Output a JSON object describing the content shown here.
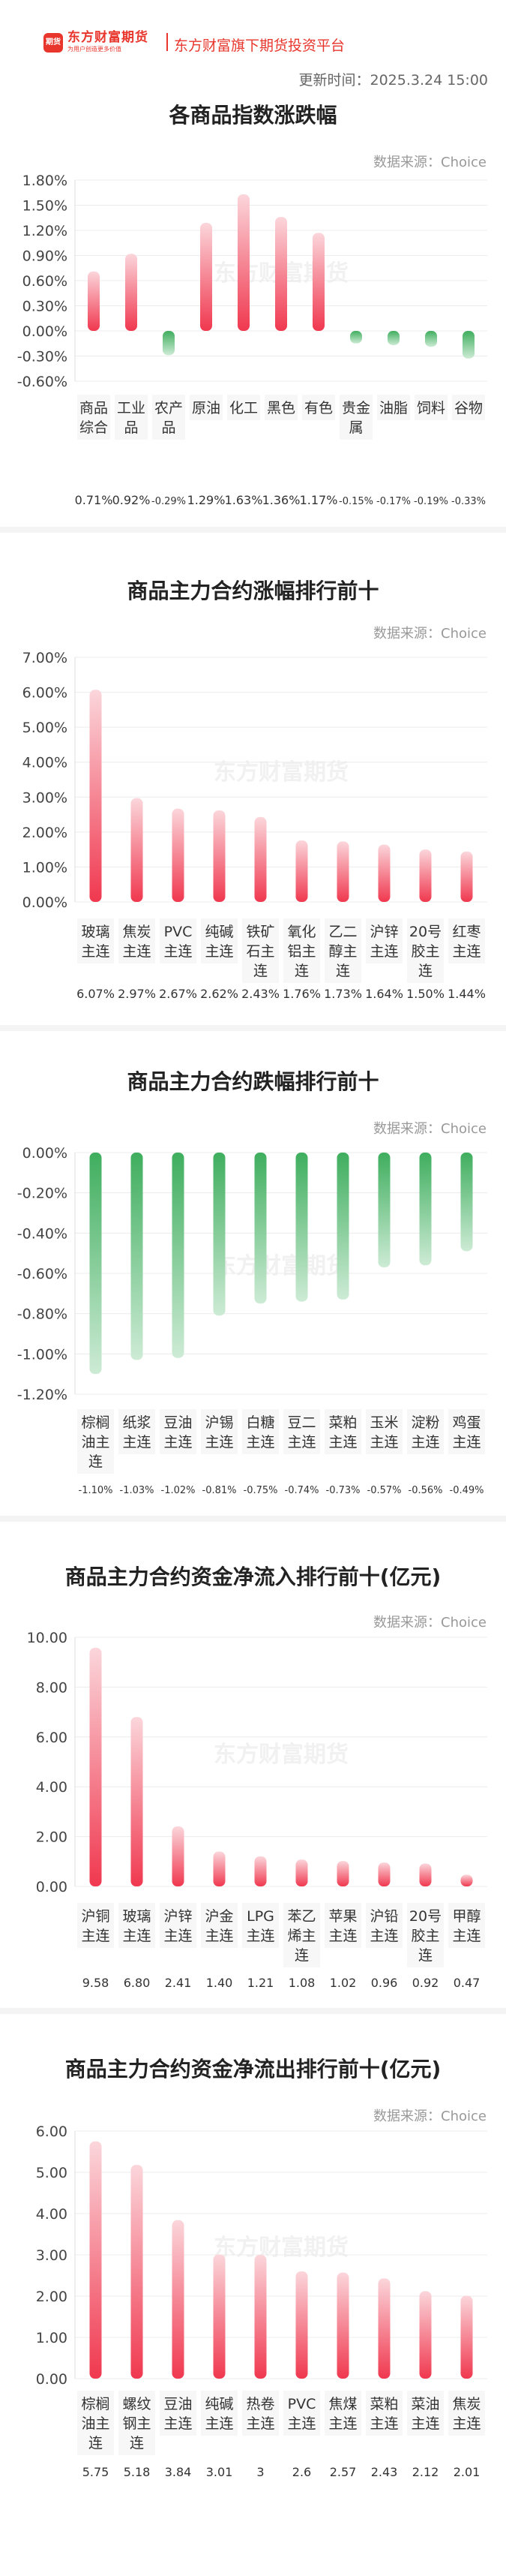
{
  "header": {
    "logo_label": "期货",
    "brand": "东方财富期货",
    "brand_sub": "为用户创造更多价值",
    "tagline": "东方财富旗下期货投资平台",
    "updated": "更新时间：2025.3.24 15:00"
  },
  "watermark": "东方财富期货",
  "colors": {
    "up": "#f0384f",
    "down": "#3fae5e",
    "up_light": "#fbd6db",
    "down_light": "#cdebd5"
  },
  "chart_data": [
    {
      "type": "bar",
      "title": "各商品指数涨跌幅",
      "source": "数据来源：Choice",
      "categories": [
        "商品综合",
        "工业品",
        "农产品",
        "原油",
        "化工",
        "黑色",
        "有色",
        "贵金属",
        "油脂",
        "饲料",
        "谷物"
      ],
      "category_lines": [
        [
          "商品",
          "综合"
        ],
        [
          "工业",
          "品"
        ],
        [
          "农产",
          "品"
        ],
        [
          "原油"
        ],
        [
          "化工"
        ],
        [
          "黑色"
        ],
        [
          "有色"
        ],
        [
          "贵金",
          "属"
        ],
        [
          "油脂"
        ],
        [
          "饲料"
        ],
        [
          "谷物"
        ]
      ],
      "values": [
        0.71,
        0.92,
        -0.29,
        1.29,
        1.63,
        1.36,
        1.17,
        -0.15,
        -0.17,
        -0.19,
        -0.33
      ],
      "value_labels": [
        "0.71%",
        "0.92%",
        "-0.29%",
        "1.29%",
        "1.63%",
        "1.36%",
        "1.17%",
        "-0.15%",
        "-0.17%",
        "-0.19%",
        "-0.33%"
      ],
      "ylim": [
        -0.6,
        1.8
      ],
      "yticks": [
        -0.6,
        -0.3,
        0,
        0.3,
        0.6,
        0.9,
        1.2,
        1.5,
        1.8
      ],
      "ytick_labels": [
        "-0.60%",
        "-0.30%",
        "0.00%",
        "0.30%",
        "0.60%",
        "0.90%",
        "1.20%",
        "1.50%",
        "1.80%"
      ]
    },
    {
      "type": "bar",
      "title": "商品主力合约涨幅排行前十",
      "source": "数据来源：Choice",
      "categories": [
        "玻璃主连",
        "焦炭主连",
        "PVC主连",
        "纯碱主连",
        "铁矿石主连",
        "氧化铝主连",
        "乙二醇主连",
        "沪锌主连",
        "20号胶主连",
        "红枣主连"
      ],
      "category_lines": [
        [
          "玻璃",
          "主连"
        ],
        [
          "焦炭",
          "主连"
        ],
        [
          "PVC",
          "主连"
        ],
        [
          "纯碱",
          "主连"
        ],
        [
          "铁矿",
          "石主",
          "连"
        ],
        [
          "氧化",
          "铝主",
          "连"
        ],
        [
          "乙二",
          "醇主",
          "连"
        ],
        [
          "沪锌",
          "主连"
        ],
        [
          "20号",
          "胶主",
          "连"
        ],
        [
          "红枣",
          "主连"
        ]
      ],
      "values": [
        6.07,
        2.97,
        2.67,
        2.62,
        2.43,
        1.76,
        1.73,
        1.64,
        1.5,
        1.44
      ],
      "value_labels": [
        "6.07%",
        "2.97%",
        "2.67%",
        "2.62%",
        "2.43%",
        "1.76%",
        "1.73%",
        "1.64%",
        "1.50%",
        "1.44%"
      ],
      "ylim": [
        0,
        7
      ],
      "yticks": [
        0,
        1,
        2,
        3,
        4,
        5,
        6,
        7
      ],
      "ytick_labels": [
        "0.00%",
        "1.00%",
        "2.00%",
        "3.00%",
        "4.00%",
        "5.00%",
        "6.00%",
        "7.00%"
      ]
    },
    {
      "type": "bar",
      "title": "商品主力合约跌幅排行前十",
      "source": "数据来源：Choice",
      "categories": [
        "棕榈油主连",
        "纸浆主连",
        "豆油主连",
        "沪锡主连",
        "白糖主连",
        "豆二主连",
        "菜粕主连",
        "玉米主连",
        "淀粉主连",
        "鸡蛋主连"
      ],
      "category_lines": [
        [
          "棕榈",
          "油主",
          "连"
        ],
        [
          "纸浆",
          "主连"
        ],
        [
          "豆油",
          "主连"
        ],
        [
          "沪锡",
          "主连"
        ],
        [
          "白糖",
          "主连"
        ],
        [
          "豆二",
          "主连"
        ],
        [
          "菜粕",
          "主连"
        ],
        [
          "玉米",
          "主连"
        ],
        [
          "淀粉",
          "主连"
        ],
        [
          "鸡蛋",
          "主连"
        ]
      ],
      "values": [
        -1.1,
        -1.03,
        -1.02,
        -0.81,
        -0.75,
        -0.74,
        -0.73,
        -0.57,
        -0.56,
        -0.49
      ],
      "value_labels": [
        "-1.10%",
        "-1.03%",
        "-1.02%",
        "-0.81%",
        "-0.75%",
        "-0.74%",
        "-0.73%",
        "-0.57%",
        "-0.56%",
        "-0.49%"
      ],
      "ylim": [
        -1.2,
        0
      ],
      "yticks": [
        -1.2,
        -1.0,
        -0.8,
        -0.6,
        -0.4,
        -0.2,
        0
      ],
      "ytick_labels": [
        "-1.20%",
        "-1.00%",
        "-0.80%",
        "-0.60%",
        "-0.40%",
        "-0.20%",
        "0.00%"
      ]
    },
    {
      "type": "bar",
      "title": "商品主力合约资金净流入排行前十(亿元)",
      "source": "数据来源：Choice",
      "categories": [
        "沪铜主连",
        "玻璃主连",
        "沪锌主连",
        "沪金主连",
        "LPG主连",
        "苯乙烯主连",
        "苹果主连",
        "沪铅主连",
        "20号胶主连",
        "甲醇主连"
      ],
      "category_lines": [
        [
          "沪铜",
          "主连"
        ],
        [
          "玻璃",
          "主连"
        ],
        [
          "沪锌",
          "主连"
        ],
        [
          "沪金",
          "主连"
        ],
        [
          "LPG",
          "主连"
        ],
        [
          "苯乙",
          "烯主",
          "连"
        ],
        [
          "苹果",
          "主连"
        ],
        [
          "沪铅",
          "主连"
        ],
        [
          "20号",
          "胶主",
          "连"
        ],
        [
          "甲醇",
          "主连"
        ]
      ],
      "values": [
        9.58,
        6.8,
        2.41,
        1.4,
        1.21,
        1.08,
        1.02,
        0.96,
        0.92,
        0.47
      ],
      "value_labels": [
        "9.58",
        "6.80",
        "2.41",
        "1.40",
        "1.21",
        "1.08",
        "1.02",
        "0.96",
        "0.92",
        "0.47"
      ],
      "ylim": [
        0,
        10
      ],
      "yticks": [
        0,
        2,
        4,
        6,
        8,
        10
      ],
      "ytick_labels": [
        "0.00",
        "2.00",
        "4.00",
        "6.00",
        "8.00",
        "10.00"
      ]
    },
    {
      "type": "bar",
      "title": "商品主力合约资金净流出排行前十(亿元)",
      "source": "数据来源：Choice",
      "categories": [
        "棕榈油主连",
        "螺纹钢主连",
        "豆油主连",
        "纯碱主连",
        "热卷主连",
        "PVC主连",
        "焦煤主连",
        "菜粕主连",
        "菜油主连",
        "焦炭主连"
      ],
      "category_lines": [
        [
          "棕榈",
          "油主",
          "连"
        ],
        [
          "螺纹",
          "钢主",
          "连"
        ],
        [
          "豆油",
          "主连"
        ],
        [
          "纯碱",
          "主连"
        ],
        [
          "热卷",
          "主连"
        ],
        [
          "PVC",
          "主连"
        ],
        [
          "焦煤",
          "主连"
        ],
        [
          "菜粕",
          "主连"
        ],
        [
          "菜油",
          "主连"
        ],
        [
          "焦炭",
          "主连"
        ]
      ],
      "values": [
        5.75,
        5.18,
        3.84,
        3.01,
        3,
        2.6,
        2.57,
        2.43,
        2.12,
        2.01
      ],
      "value_labels": [
        "5.75",
        "5.18",
        "3.84",
        "3.01",
        "3",
        "2.6",
        "2.57",
        "2.43",
        "2.12",
        "2.01"
      ],
      "ylim": [
        0,
        6
      ],
      "yticks": [
        0,
        1,
        2,
        3,
        4,
        5,
        6
      ],
      "ytick_labels": [
        "0.00",
        "1.00",
        "2.00",
        "3.00",
        "4.00",
        "5.00",
        "6.00"
      ]
    }
  ]
}
